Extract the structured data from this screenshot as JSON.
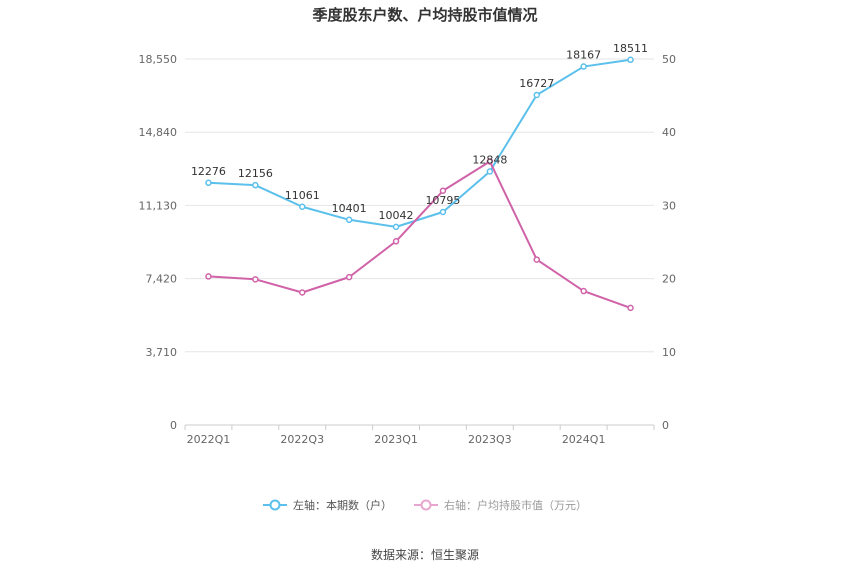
{
  "chart_data": {
    "type": "line",
    "title": "季度股东户数、户均持股市值情况",
    "x": [
      "2022Q1",
      "2022Q2",
      "2022Q3",
      "2022Q4",
      "2023Q1",
      "2023Q2",
      "2023Q3",
      "2023Q4",
      "2024Q1",
      "2024Q2"
    ],
    "x_tick_labels": [
      "2022Q1",
      "2022Q3",
      "2023Q1",
      "2023Q3",
      "2024Q1"
    ],
    "y_left": {
      "ylim": [
        0,
        18550
      ],
      "ticks": [
        "0",
        "3,710",
        "7,420",
        "11,130",
        "14,840",
        "18,550"
      ],
      "tick_values": [
        0,
        3710,
        7420,
        11130,
        14840,
        18550
      ]
    },
    "y_right": {
      "ylim": [
        0,
        50
      ],
      "ticks": [
        "0",
        "10",
        "20",
        "30",
        "40",
        "50"
      ],
      "tick_values": [
        0,
        10,
        20,
        30,
        40,
        50
      ]
    },
    "series": [
      {
        "name": "左轴：本期数（户）",
        "axis": "left",
        "color": "#5bc0eb",
        "values": [
          12276,
          12156,
          11061,
          10401,
          10042,
          10795,
          12848,
          16727,
          18167,
          18511
        ],
        "labels": [
          "12276",
          "12156",
          "11061",
          "10401",
          "10042",
          "10795",
          "12848",
          "16727",
          "18167",
          "18511"
        ]
      },
      {
        "name": "右轴：户均持股市值（万元）",
        "axis": "right",
        "color": "#d063a8",
        "values": [
          20.3,
          19.9,
          18.1,
          20.2,
          25.1,
          32.0,
          36.0,
          22.6,
          18.3,
          16.0
        ]
      }
    ],
    "grid": true,
    "legend_position": "bottom"
  },
  "source": "数据来源：恒生聚源"
}
